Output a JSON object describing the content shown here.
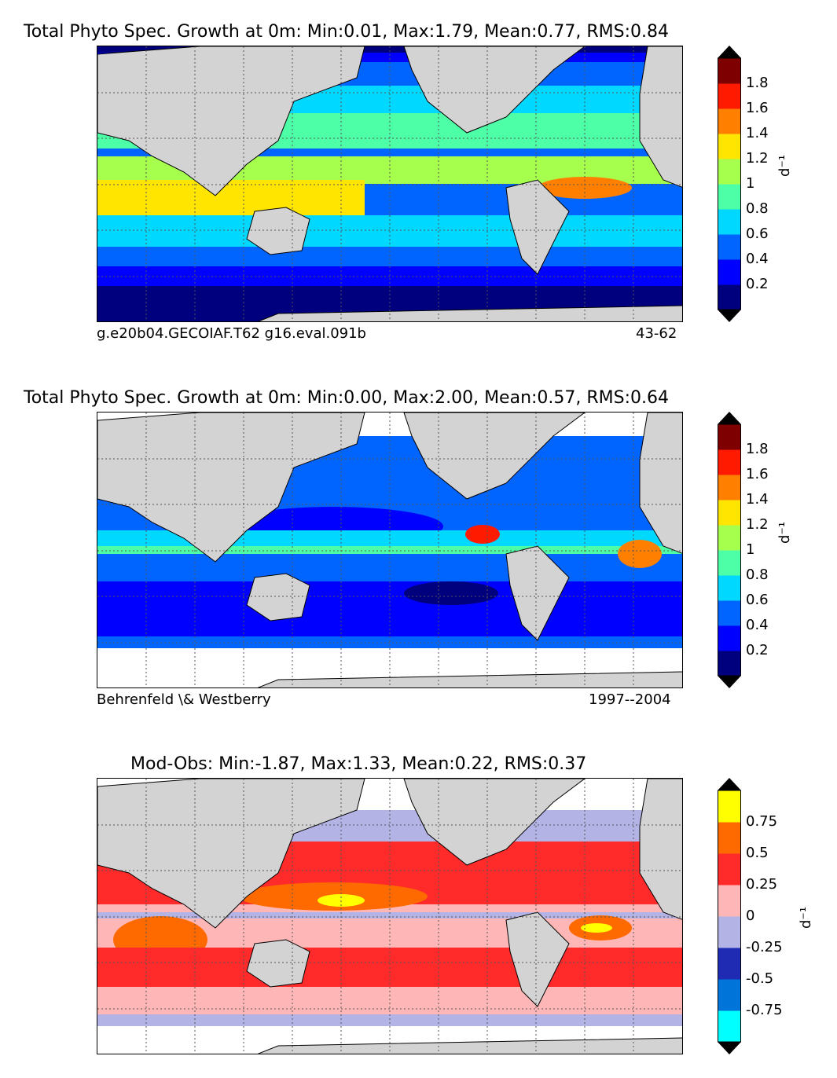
{
  "panels": [
    {
      "title": "Total Phyto Spec. Growth at 0m: Min:0.01, Max:1.79, Mean:0.77, RMS:0.84",
      "caption_left": "g.e20b04.GECOIAF.T62 g16.eval.091b",
      "caption_right": "43-62",
      "colorbar": {
        "unit": "d⁻¹",
        "ticks": [
          "0.2",
          "0.4",
          "0.6",
          "0.8",
          "1",
          "1.2",
          "1.4",
          "1.6",
          "1.8"
        ],
        "colors": [
          "#00007f",
          "#0000ff",
          "#0064ff",
          "#00d8ff",
          "#4dffa6",
          "#a6ff4d",
          "#ffe500",
          "#ff7f00",
          "#ff1a00",
          "#7f0000"
        ],
        "over": "#000000",
        "under": "#000000"
      }
    },
    {
      "title": "Total Phyto Spec. Growth at 0m: Min:0.00, Max:2.00, Mean:0.57, RMS:0.64",
      "caption_left": "Behrenfeld \\& Westberry",
      "caption_right": "1997--2004",
      "colorbar": {
        "unit": "d⁻¹",
        "ticks": [
          "0.2",
          "0.4",
          "0.6",
          "0.8",
          "1",
          "1.2",
          "1.4",
          "1.6",
          "1.8"
        ],
        "colors": [
          "#00007f",
          "#0000ff",
          "#0064ff",
          "#00d8ff",
          "#4dffa6",
          "#a6ff4d",
          "#ffe500",
          "#ff7f00",
          "#ff1a00",
          "#7f0000"
        ],
        "over": "#000000",
        "under": "#000000"
      }
    },
    {
      "title": "Mod-Obs: Min:-1.87, Max:1.33, Mean:0.22, RMS:0.37",
      "caption_left": "",
      "caption_right": "",
      "colorbar": {
        "unit": "d⁻¹",
        "ticks": [
          "-0.75",
          "-0.5",
          "-0.25",
          "0",
          "0.25",
          "0.5",
          "0.75"
        ],
        "colors": [
          "#00ffff",
          "#0074d9",
          "#1f2bb3",
          "#b3b3e6",
          "#ffb6b6",
          "#ff2a2a",
          "#ff6a00",
          "#ffff00"
        ],
        "over": "#000000",
        "under": "#000000"
      }
    }
  ],
  "colors": {
    "land": "#d3d3d3",
    "coast": "#000000",
    "grid": "#555555"
  }
}
